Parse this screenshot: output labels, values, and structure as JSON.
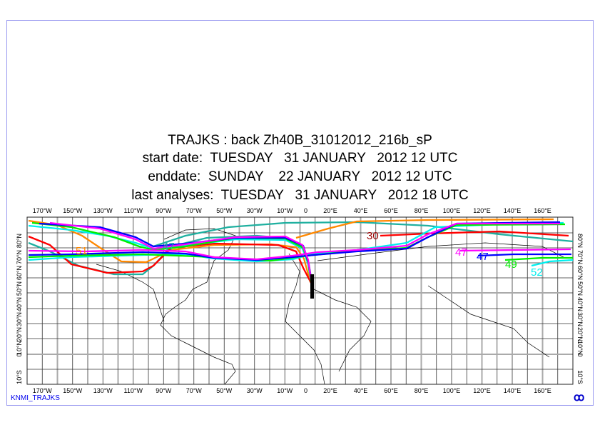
{
  "header": {
    "title": "TRAJKS : back Zh40B_31012012_216b_sP",
    "start_date": "start date:  TUESDAY   31 JANUARY   2012 12 UTC",
    "end_date": "enddate:  SUNDAY    22 JANUARY   2012 12 UTC",
    "last_analyses": "last analyses:  TUESDAY   31 JANUARY   2012 18 UTC"
  },
  "map": {
    "lon_labels": [
      "170°W",
      "150°W",
      "130°W",
      "110°W",
      "90°W",
      "70°W",
      "50°W",
      "30°W",
      "10°W",
      "0",
      "20°E",
      "40°E",
      "60°E",
      "80°E",
      "100°E",
      "120°E",
      "140°E",
      "160°E"
    ],
    "lat_labels": [
      "80°N",
      "70°N",
      "60°N",
      "50°N",
      "40°N",
      "30°N",
      "20°N",
      "10°N",
      "0",
      "10°S"
    ],
    "trajectory_colors": {
      "red": "#ff0000",
      "orange": "#ff8800",
      "teal": "#20b0a0",
      "blue": "#0000ff",
      "magenta": "#ff00ff",
      "green": "#00ee00",
      "cyan": "#00eeee"
    },
    "trajectory_labels": [
      {
        "text": "51",
        "color": "#ff8800"
      },
      {
        "text": "47",
        "color": "#20b0a0"
      },
      {
        "text": "30",
        "color": "#990000"
      },
      {
        "text": "47",
        "color": "#ff00ff"
      },
      {
        "text": "47",
        "color": "#0000ff"
      },
      {
        "text": "49",
        "color": "#00ee00"
      },
      {
        "text": "52",
        "color": "#00eeee"
      }
    ]
  },
  "footer": {
    "source": "KNMI_TRAJKS",
    "logo_icon": "ecmwf-logo"
  }
}
